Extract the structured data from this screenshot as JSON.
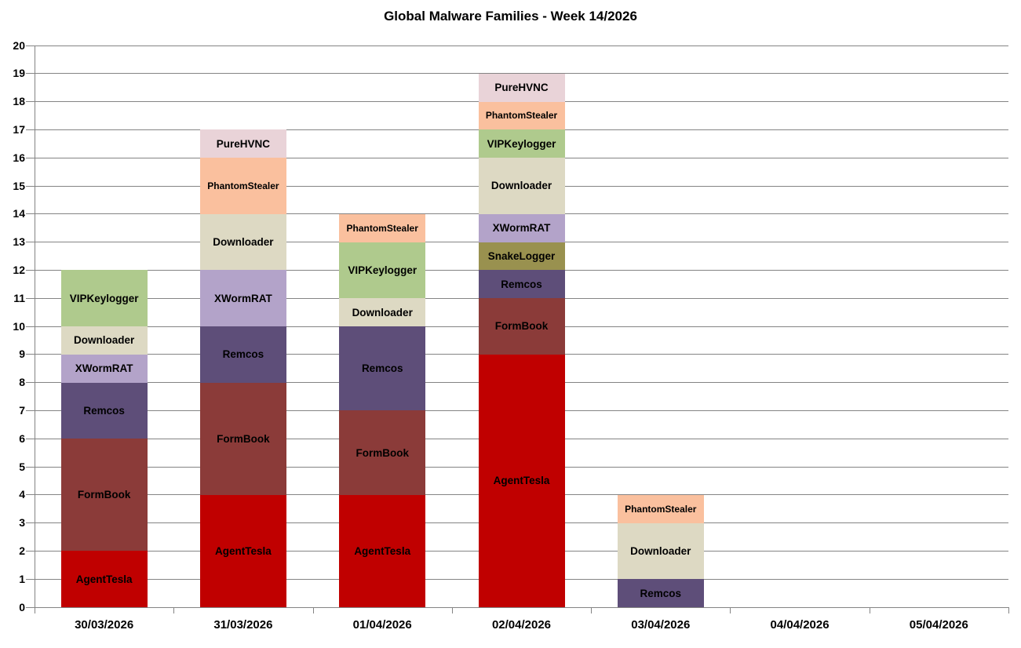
{
  "chart_data": {
    "type": "bar",
    "stacked": true,
    "title": "Global Malware Families - Week 14/2026",
    "categories": [
      "30/03/2026",
      "31/03/2026",
      "01/04/2026",
      "02/04/2026",
      "03/04/2026",
      "04/04/2026",
      "05/04/2026"
    ],
    "series": [
      {
        "name": "AgentTesla",
        "color": "#C00000",
        "values": [
          2,
          4,
          4,
          9,
          0,
          0,
          0
        ]
      },
      {
        "name": "FormBook",
        "color": "#8B3B39",
        "values": [
          4,
          4,
          3,
          2,
          0,
          0,
          0
        ]
      },
      {
        "name": "Remcos",
        "color": "#5E4E79",
        "values": [
          2,
          2,
          3,
          1,
          1,
          0,
          0
        ]
      },
      {
        "name": "SnakeLogger",
        "color": "#99914F",
        "values": [
          0,
          0,
          0,
          1,
          0,
          0,
          0
        ]
      },
      {
        "name": "XWormRAT",
        "color": "#B3A3C9",
        "values": [
          1,
          2,
          0,
          1,
          0,
          0,
          0
        ]
      },
      {
        "name": "Downloader",
        "color": "#DDD9C3",
        "values": [
          1,
          2,
          1,
          2,
          2,
          0,
          0
        ]
      },
      {
        "name": "VIPKeylogger",
        "color": "#AFCA8D",
        "values": [
          2,
          0,
          2,
          1,
          0,
          0,
          0
        ]
      },
      {
        "name": "PhantomStealer",
        "color": "#FAC09E",
        "values": [
          0,
          2,
          1,
          1,
          1,
          0,
          0
        ]
      },
      {
        "name": "PureHVNC",
        "color": "#E9D3D8",
        "values": [
          0,
          1,
          0,
          1,
          0,
          0,
          0
        ]
      }
    ],
    "totals": [
      12,
      17,
      14,
      19,
      4,
      0,
      0
    ],
    "ylim": [
      0,
      20
    ],
    "ytick_step": 1,
    "grid": true,
    "gridline_color": "#848484",
    "axis_color": "#848484",
    "label_color": "#000000",
    "background_color": "#FFFFFF",
    "legend": "none",
    "segment_labels": true,
    "xlabel": "",
    "ylabel": ""
  }
}
